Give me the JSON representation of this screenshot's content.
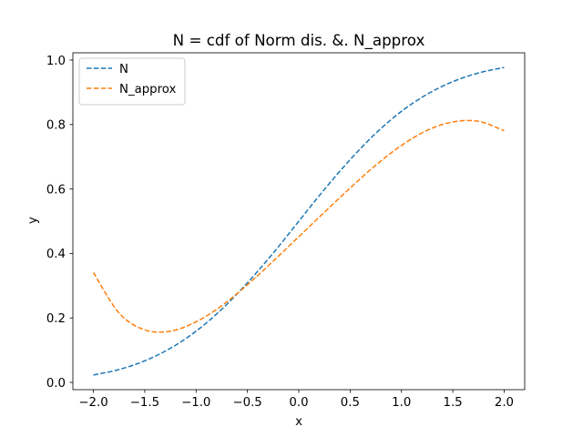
{
  "chart_data": {
    "type": "line",
    "title": "N = cdf of Norm dis. &. N_approx",
    "xlabel": "x",
    "ylabel": "y",
    "xlim": [
      -2.2,
      2.2
    ],
    "ylim": [
      -0.0225,
      1.0225
    ],
    "x_ticks": [
      -2.0,
      -1.5,
      -1.0,
      -0.5,
      0.0,
      0.5,
      1.0,
      1.5,
      2.0
    ],
    "x_tick_labels": [
      "−2.0",
      "−1.5",
      "−1.0",
      "−0.5",
      "0.0",
      "0.5",
      "1.0",
      "1.5",
      "2.0"
    ],
    "y_ticks": [
      0.0,
      0.2,
      0.4,
      0.6,
      0.8,
      1.0
    ],
    "y_tick_labels": [
      "0.0",
      "0.2",
      "0.4",
      "0.6",
      "0.8",
      "1.0"
    ],
    "grid": false,
    "legend_position": "upper-left",
    "x": [
      -2.0,
      -1.75,
      -1.5,
      -1.25,
      -1.0,
      -0.75,
      -0.5,
      -0.25,
      0.0,
      0.25,
      0.5,
      0.75,
      1.0,
      1.25,
      1.5,
      1.75,
      2.0
    ],
    "series": [
      {
        "name": "N",
        "color": "#1f77b4",
        "line_style": "dashed",
        "values": [
          0.023,
          0.04,
          0.067,
          0.106,
          0.159,
          0.227,
          0.309,
          0.401,
          0.5,
          0.599,
          0.691,
          0.773,
          0.841,
          0.894,
          0.933,
          0.96,
          0.977
        ]
      },
      {
        "name": "N_approx",
        "color": "#ff7f0e",
        "line_style": "dashed",
        "values": [
          0.341,
          0.215,
          0.163,
          0.159,
          0.188,
          0.238,
          0.303,
          0.376,
          0.452,
          0.528,
          0.603,
          0.674,
          0.735,
          0.782,
          0.808,
          0.81,
          0.781
        ]
      }
    ]
  }
}
